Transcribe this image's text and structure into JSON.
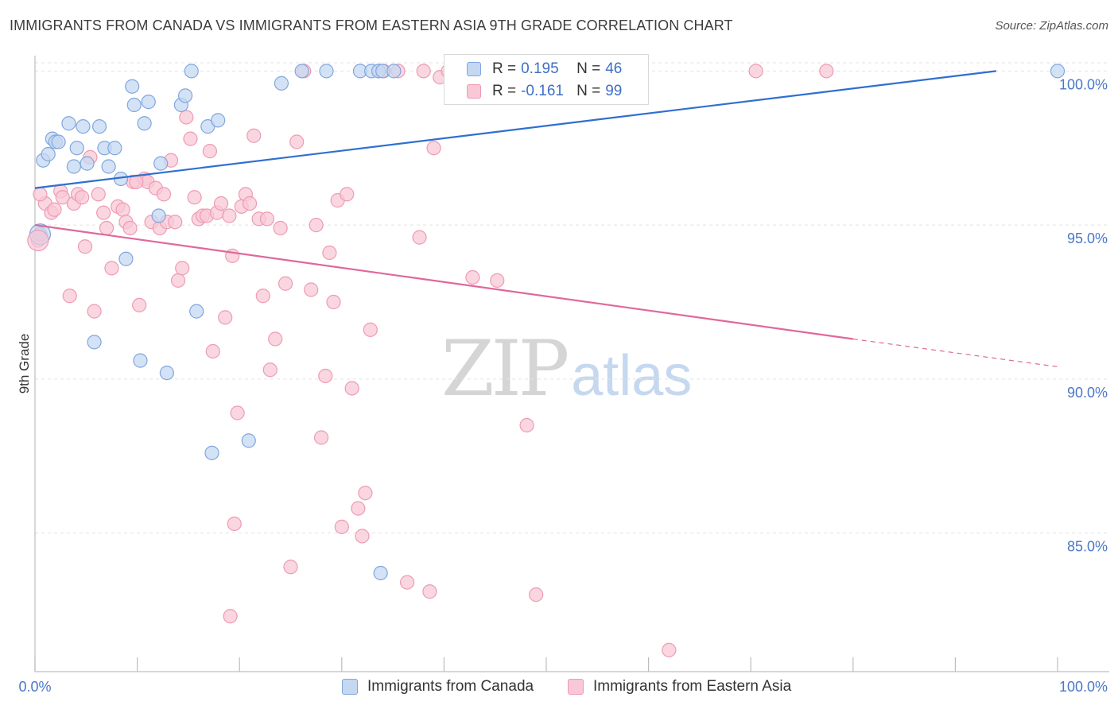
{
  "title": "IMMIGRANTS FROM CANADA VS IMMIGRANTS FROM EASTERN ASIA 9TH GRADE CORRELATION CHART",
  "source": "Source: ZipAtlas.com",
  "watermark": {
    "zip": "ZIP",
    "atlas": "atlas"
  },
  "legend": {
    "r_label": "R =",
    "n_label": "N =",
    "rows": [
      {
        "r": "0.195",
        "n": "46"
      },
      {
        "r": "-0.161",
        "n": "99"
      }
    ]
  },
  "colors": {
    "canada_fill": "#c5d8f2",
    "canada_stroke": "#7fa6de",
    "canada_line": "#2f6fd0",
    "asia_fill": "#f8c8d6",
    "asia_stroke": "#ee9ab3",
    "asia_line": "#e0689a",
    "axis_label": "#4a77c9",
    "grid": "#e3e3e3"
  },
  "chart_data": {
    "type": "scatter",
    "title": "IMMIGRANTS FROM CANADA VS IMMIGRANTS FROM EASTERN ASIA 9TH GRADE CORRELATION CHART",
    "xlabel": "",
    "ylabel": "9th Grade",
    "xlim": [
      0,
      100
    ],
    "ylim": [
      80.5,
      100.5
    ],
    "x_tick_labels": [
      "0.0%",
      "100.0%"
    ],
    "y_ticks": [
      85,
      90,
      95,
      100
    ],
    "y_tick_labels": [
      "85.0%",
      "90.0%",
      "95.0%",
      "100.0%"
    ],
    "grid": true,
    "legend_position": "top-center",
    "series": [
      {
        "name": "Immigrants from Canada",
        "R": 0.195,
        "N": 46,
        "trend": {
          "x": [
            0,
            94
          ],
          "y": [
            96.2,
            100.0
          ]
        },
        "points": [
          [
            0.5,
            94.7
          ],
          [
            0.8,
            97.1
          ],
          [
            1.3,
            97.3
          ],
          [
            1.7,
            97.8
          ],
          [
            2.0,
            97.7
          ],
          [
            2.3,
            97.7
          ],
          [
            3.3,
            98.3
          ],
          [
            3.8,
            96.9
          ],
          [
            4.1,
            97.5
          ],
          [
            4.7,
            98.2
          ],
          [
            5.1,
            97.0
          ],
          [
            6.3,
            98.2
          ],
          [
            6.8,
            97.5
          ],
          [
            7.2,
            96.9
          ],
          [
            7.8,
            97.5
          ],
          [
            8.4,
            96.5
          ],
          [
            8.9,
            93.9
          ],
          [
            9.5,
            99.5
          ],
          [
            9.7,
            98.9
          ],
          [
            10.3,
            90.6
          ],
          [
            10.7,
            98.3
          ],
          [
            11.1,
            99.0
          ],
          [
            12.1,
            95.3
          ],
          [
            12.3,
            97.0
          ],
          [
            12.9,
            90.2
          ],
          [
            14.3,
            98.9
          ],
          [
            14.7,
            99.2
          ],
          [
            15.3,
            100.0
          ],
          [
            15.8,
            92.2
          ],
          [
            16.9,
            98.2
          ],
          [
            17.3,
            87.6
          ],
          [
            17.9,
            98.4
          ],
          [
            20.9,
            88.0
          ],
          [
            24.1,
            99.6
          ],
          [
            26.1,
            100.0
          ],
          [
            28.5,
            100.0
          ],
          [
            31.8,
            100.0
          ],
          [
            32.9,
            100.0
          ],
          [
            33.6,
            100.0
          ],
          [
            34.0,
            100.0
          ],
          [
            35.1,
            100.0
          ],
          [
            33.8,
            83.7
          ],
          [
            46.9,
            100.0
          ],
          [
            50.0,
            100.0
          ],
          [
            100.0,
            100.0
          ],
          [
            5.8,
            91.2
          ]
        ]
      },
      {
        "name": "Immigrants from Eastern Asia",
        "R": -0.161,
        "N": 99,
        "trend": {
          "x": [
            0,
            80
          ],
          "y": [
            95.0,
            91.3
          ]
        },
        "trend_dashed": {
          "x": [
            80,
            100
          ],
          "y": [
            91.3,
            90.4
          ]
        },
        "points": [
          [
            0.3,
            94.5
          ],
          [
            1.0,
            95.7
          ],
          [
            1.6,
            95.4
          ],
          [
            1.9,
            95.5
          ],
          [
            2.5,
            96.1
          ],
          [
            2.7,
            95.9
          ],
          [
            3.4,
            92.7
          ],
          [
            3.8,
            95.7
          ],
          [
            4.2,
            96.0
          ],
          [
            4.6,
            95.9
          ],
          [
            4.9,
            94.3
          ],
          [
            5.4,
            97.2
          ],
          [
            5.8,
            92.2
          ],
          [
            6.2,
            96.0
          ],
          [
            6.7,
            95.4
          ],
          [
            7.0,
            94.9
          ],
          [
            7.5,
            93.6
          ],
          [
            8.1,
            95.6
          ],
          [
            8.6,
            95.5
          ],
          [
            8.9,
            95.1
          ],
          [
            9.3,
            94.9
          ],
          [
            9.6,
            96.4
          ],
          [
            10.2,
            92.4
          ],
          [
            10.7,
            96.5
          ],
          [
            11.0,
            96.4
          ],
          [
            11.4,
            95.1
          ],
          [
            11.8,
            96.2
          ],
          [
            12.2,
            94.9
          ],
          [
            12.6,
            96.0
          ],
          [
            12.9,
            95.1
          ],
          [
            13.3,
            97.1
          ],
          [
            13.7,
            95.1
          ],
          [
            14.0,
            93.2
          ],
          [
            14.4,
            93.6
          ],
          [
            14.8,
            98.5
          ],
          [
            15.2,
            97.8
          ],
          [
            15.6,
            95.9
          ],
          [
            16.0,
            95.2
          ],
          [
            16.4,
            95.3
          ],
          [
            16.8,
            95.3
          ],
          [
            17.1,
            97.4
          ],
          [
            17.4,
            90.9
          ],
          [
            17.8,
            95.4
          ],
          [
            18.2,
            95.7
          ],
          [
            18.6,
            92.0
          ],
          [
            19.0,
            95.3
          ],
          [
            19.3,
            94.0
          ],
          [
            19.8,
            88.9
          ],
          [
            20.2,
            95.6
          ],
          [
            20.6,
            96.0
          ],
          [
            21.0,
            95.7
          ],
          [
            21.4,
            97.9
          ],
          [
            21.9,
            95.2
          ],
          [
            22.3,
            92.7
          ],
          [
            22.7,
            95.2
          ],
          [
            23.0,
            90.3
          ],
          [
            23.5,
            91.3
          ],
          [
            24.0,
            94.9
          ],
          [
            24.5,
            93.1
          ],
          [
            25.0,
            83.9
          ],
          [
            25.6,
            97.7
          ],
          [
            26.3,
            100.0
          ],
          [
            27.0,
            92.9
          ],
          [
            27.5,
            95.0
          ],
          [
            28.0,
            88.1
          ],
          [
            28.4,
            90.1
          ],
          [
            28.8,
            94.1
          ],
          [
            29.2,
            92.5
          ],
          [
            29.6,
            95.8
          ],
          [
            30.0,
            85.2
          ],
          [
            30.5,
            96.0
          ],
          [
            31.0,
            89.7
          ],
          [
            31.6,
            85.8
          ],
          [
            32.0,
            84.9
          ],
          [
            32.3,
            86.3
          ],
          [
            32.8,
            91.6
          ],
          [
            33.6,
            100.0
          ],
          [
            34.1,
            100.0
          ],
          [
            35.5,
            100.0
          ],
          [
            36.4,
            83.4
          ],
          [
            37.6,
            94.6
          ],
          [
            38.0,
            100.0
          ],
          [
            38.6,
            83.1
          ],
          [
            39.0,
            97.5
          ],
          [
            39.6,
            99.8
          ],
          [
            40.4,
            100.0
          ],
          [
            42.0,
            100.0
          ],
          [
            42.8,
            93.3
          ],
          [
            45.2,
            93.2
          ],
          [
            48.1,
            88.5
          ],
          [
            49.0,
            83.0
          ],
          [
            57.0,
            100.0
          ],
          [
            62.0,
            81.2
          ],
          [
            70.5,
            100.0
          ],
          [
            77.4,
            100.0
          ],
          [
            9.9,
            96.4
          ],
          [
            19.1,
            82.3
          ],
          [
            19.5,
            85.3
          ],
          [
            0.5,
            96.0
          ]
        ]
      }
    ]
  },
  "bottom_legend": {
    "canada": "Immigrants from Canada",
    "asia": "Immigrants from Eastern Asia"
  }
}
